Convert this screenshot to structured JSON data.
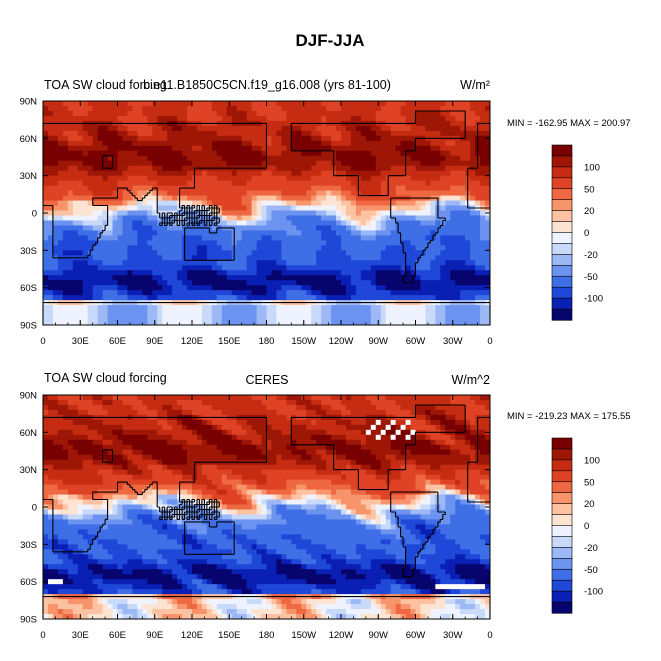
{
  "figure_title": "DJF-JJA",
  "colors": {
    "palette": [
      "#08046e",
      "#0a1fb4",
      "#1f47d8",
      "#3f6fe6",
      "#6b93ef",
      "#9cb8f5",
      "#c8d9fa",
      "#eef3ff",
      "#fde3d1",
      "#fcc2a2",
      "#f7946b",
      "#ee6841",
      "#df4325",
      "#c52c12",
      "#9e1606",
      "#780000"
    ],
    "coast": "#000000",
    "missing": "#ffffff"
  },
  "chart_data": [
    {
      "type": "heatmap",
      "left_title": "TOA SW cloud forcing",
      "center_title": "b.e11.B1850C5CN.f19_g16.008 (yrs 81-100)",
      "units": "W/m²",
      "stats": "MIN = -162.95 MAX = 200.97",
      "min": -162.95,
      "max": 200.97,
      "x_ticks": [
        "0",
        "30E",
        "60E",
        "90E",
        "120E",
        "150E",
        "180",
        "150W",
        "120W",
        "90W",
        "60W",
        "30W",
        "0"
      ],
      "y_ticks": [
        "90N",
        "60N",
        "30N",
        "0",
        "30S",
        "60S",
        "90S"
      ],
      "colorbar_labels": [
        "100",
        "50",
        "20",
        "0",
        "-20",
        "-50",
        "-100"
      ]
    },
    {
      "type": "heatmap",
      "left_title": "TOA SW cloud forcing",
      "center_title": "CERES",
      "units": "W/m^2",
      "stats": "MIN = -219.23 MAX = 175.55",
      "min": -219.23,
      "max": 175.55,
      "x_ticks": [
        "0",
        "30E",
        "60E",
        "90E",
        "120E",
        "150E",
        "180",
        "150W",
        "120W",
        "90W",
        "60W",
        "30W",
        "0"
      ],
      "y_ticks": [
        "90N",
        "60N",
        "30N",
        "0",
        "30S",
        "60S",
        "90S"
      ],
      "colorbar_labels": [
        "100",
        "50",
        "20",
        "0",
        "-20",
        "-50",
        "-100"
      ]
    }
  ]
}
